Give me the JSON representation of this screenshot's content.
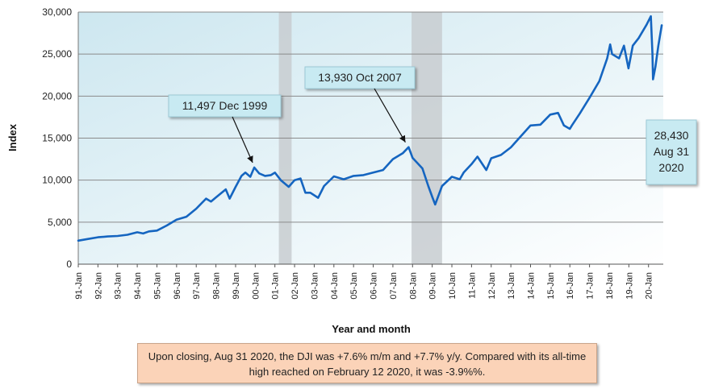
{
  "chart_data": {
    "type": "line",
    "title": "",
    "xlabel": "Year and month",
    "ylabel": "Index",
    "ylim": [
      0,
      30000
    ],
    "yticks": [
      0,
      5000,
      10000,
      15000,
      20000,
      25000,
      30000
    ],
    "ytick_labels": [
      "0",
      "5,000",
      "10,000",
      "15,000",
      "20,000",
      "25,000",
      "30,000"
    ],
    "xlim": [
      1991.0,
      2020.75
    ],
    "xtick_labels": [
      "91-Jan",
      "92-Jan",
      "93-Jan",
      "94-Jan",
      "95-Jan",
      "96-Jan",
      "97-Jan",
      "98-Jan",
      "99-Jan",
      "00-Jan",
      "01-Jan",
      "02-Jan",
      "03-Jan",
      "04-Jan",
      "05-Jan",
      "06-Jan",
      "07-Jan",
      "08-Jan",
      "09-Jan",
      "10-Jan",
      "11-Jan",
      "12-Jan",
      "13-Jan",
      "14-Jan",
      "15-Jan",
      "16-Jan",
      "17-Jan",
      "18-Jan",
      "19-Jan",
      "20-Jan"
    ],
    "grid": "horizontal",
    "line_color": "#1565c0",
    "recession_color": "#c8cdd0",
    "recessions": [
      [
        2001.2,
        2001.85
      ],
      [
        2007.95,
        2009.5
      ]
    ],
    "series": [
      {
        "x": [
          1991.0,
          1991.5,
          1992.0,
          1992.5,
          1993.0,
          1993.5,
          1994.0,
          1994.3,
          1994.6,
          1995.0,
          1995.5,
          1996.0,
          1996.5,
          1997.0,
          1997.5,
          1997.75,
          1998.0,
          1998.5,
          1998.7,
          1999.0,
          1999.3,
          1999.5,
          1999.75,
          1999.95,
          2000.2,
          2000.5,
          2000.8,
          2001.0,
          2001.3,
          2001.7,
          2002.0,
          2002.3,
          2002.55,
          2002.8,
          2003.2,
          2003.5,
          2004.0,
          2004.5,
          2005.0,
          2005.5,
          2006.0,
          2006.5,
          2007.0,
          2007.5,
          2007.8,
          2008.0,
          2008.5,
          2008.8,
          2009.0,
          2009.15,
          2009.5,
          2010.0,
          2010.4,
          2010.6,
          2011.0,
          2011.3,
          2011.75,
          2012.0,
          2012.5,
          2013.0,
          2013.5,
          2014.0,
          2014.5,
          2015.0,
          2015.4,
          2015.7,
          2016.0,
          2016.1,
          2016.5,
          2017.0,
          2017.5,
          2017.9,
          2018.05,
          2018.15,
          2018.5,
          2018.75,
          2018.98,
          2019.2,
          2019.5,
          2019.9,
          2020.12,
          2020.2,
          2020.23,
          2020.35,
          2020.5,
          2020.67
        ],
        "y": [
          2800,
          3000,
          3200,
          3300,
          3350,
          3500,
          3800,
          3650,
          3900,
          4000,
          4600,
          5300,
          5650,
          6600,
          7800,
          7450,
          7950,
          8900,
          7800,
          9200,
          10500,
          10900,
          10400,
          11497,
          10800,
          10500,
          10600,
          10900,
          10000,
          9200,
          10000,
          10200,
          8500,
          8500,
          7900,
          9300,
          10450,
          10100,
          10500,
          10600,
          10900,
          11200,
          12500,
          13200,
          13930,
          12650,
          11400,
          9300,
          8000,
          7100,
          9300,
          10400,
          10100,
          10900,
          11900,
          12800,
          11200,
          12600,
          13000,
          13900,
          15200,
          16500,
          16600,
          17800,
          18000,
          16500,
          16100,
          16500,
          17900,
          19800,
          21800,
          24500,
          26150,
          25000,
          24500,
          26000,
          23300,
          26000,
          26900,
          28500,
          29500,
          25000,
          22000,
          23500,
          26000,
          28430
        ]
      }
    ],
    "callouts": [
      {
        "text": "11,497 Dec 1999",
        "x": 1999.95,
        "y": 11497
      },
      {
        "text": "13,930 Oct 2007",
        "x": 2007.8,
        "y": 13930
      },
      {
        "lines": [
          "28,430",
          "Aug 31",
          "2020"
        ],
        "x": 2020.67,
        "y": 28430
      }
    ]
  },
  "note": "Upon closing, Aug 31 2020, the DJI was +7.6% m/m  and +7.7% y/y. Compared with its all-time high reached on February 12 2020, it was  -3.9%%."
}
